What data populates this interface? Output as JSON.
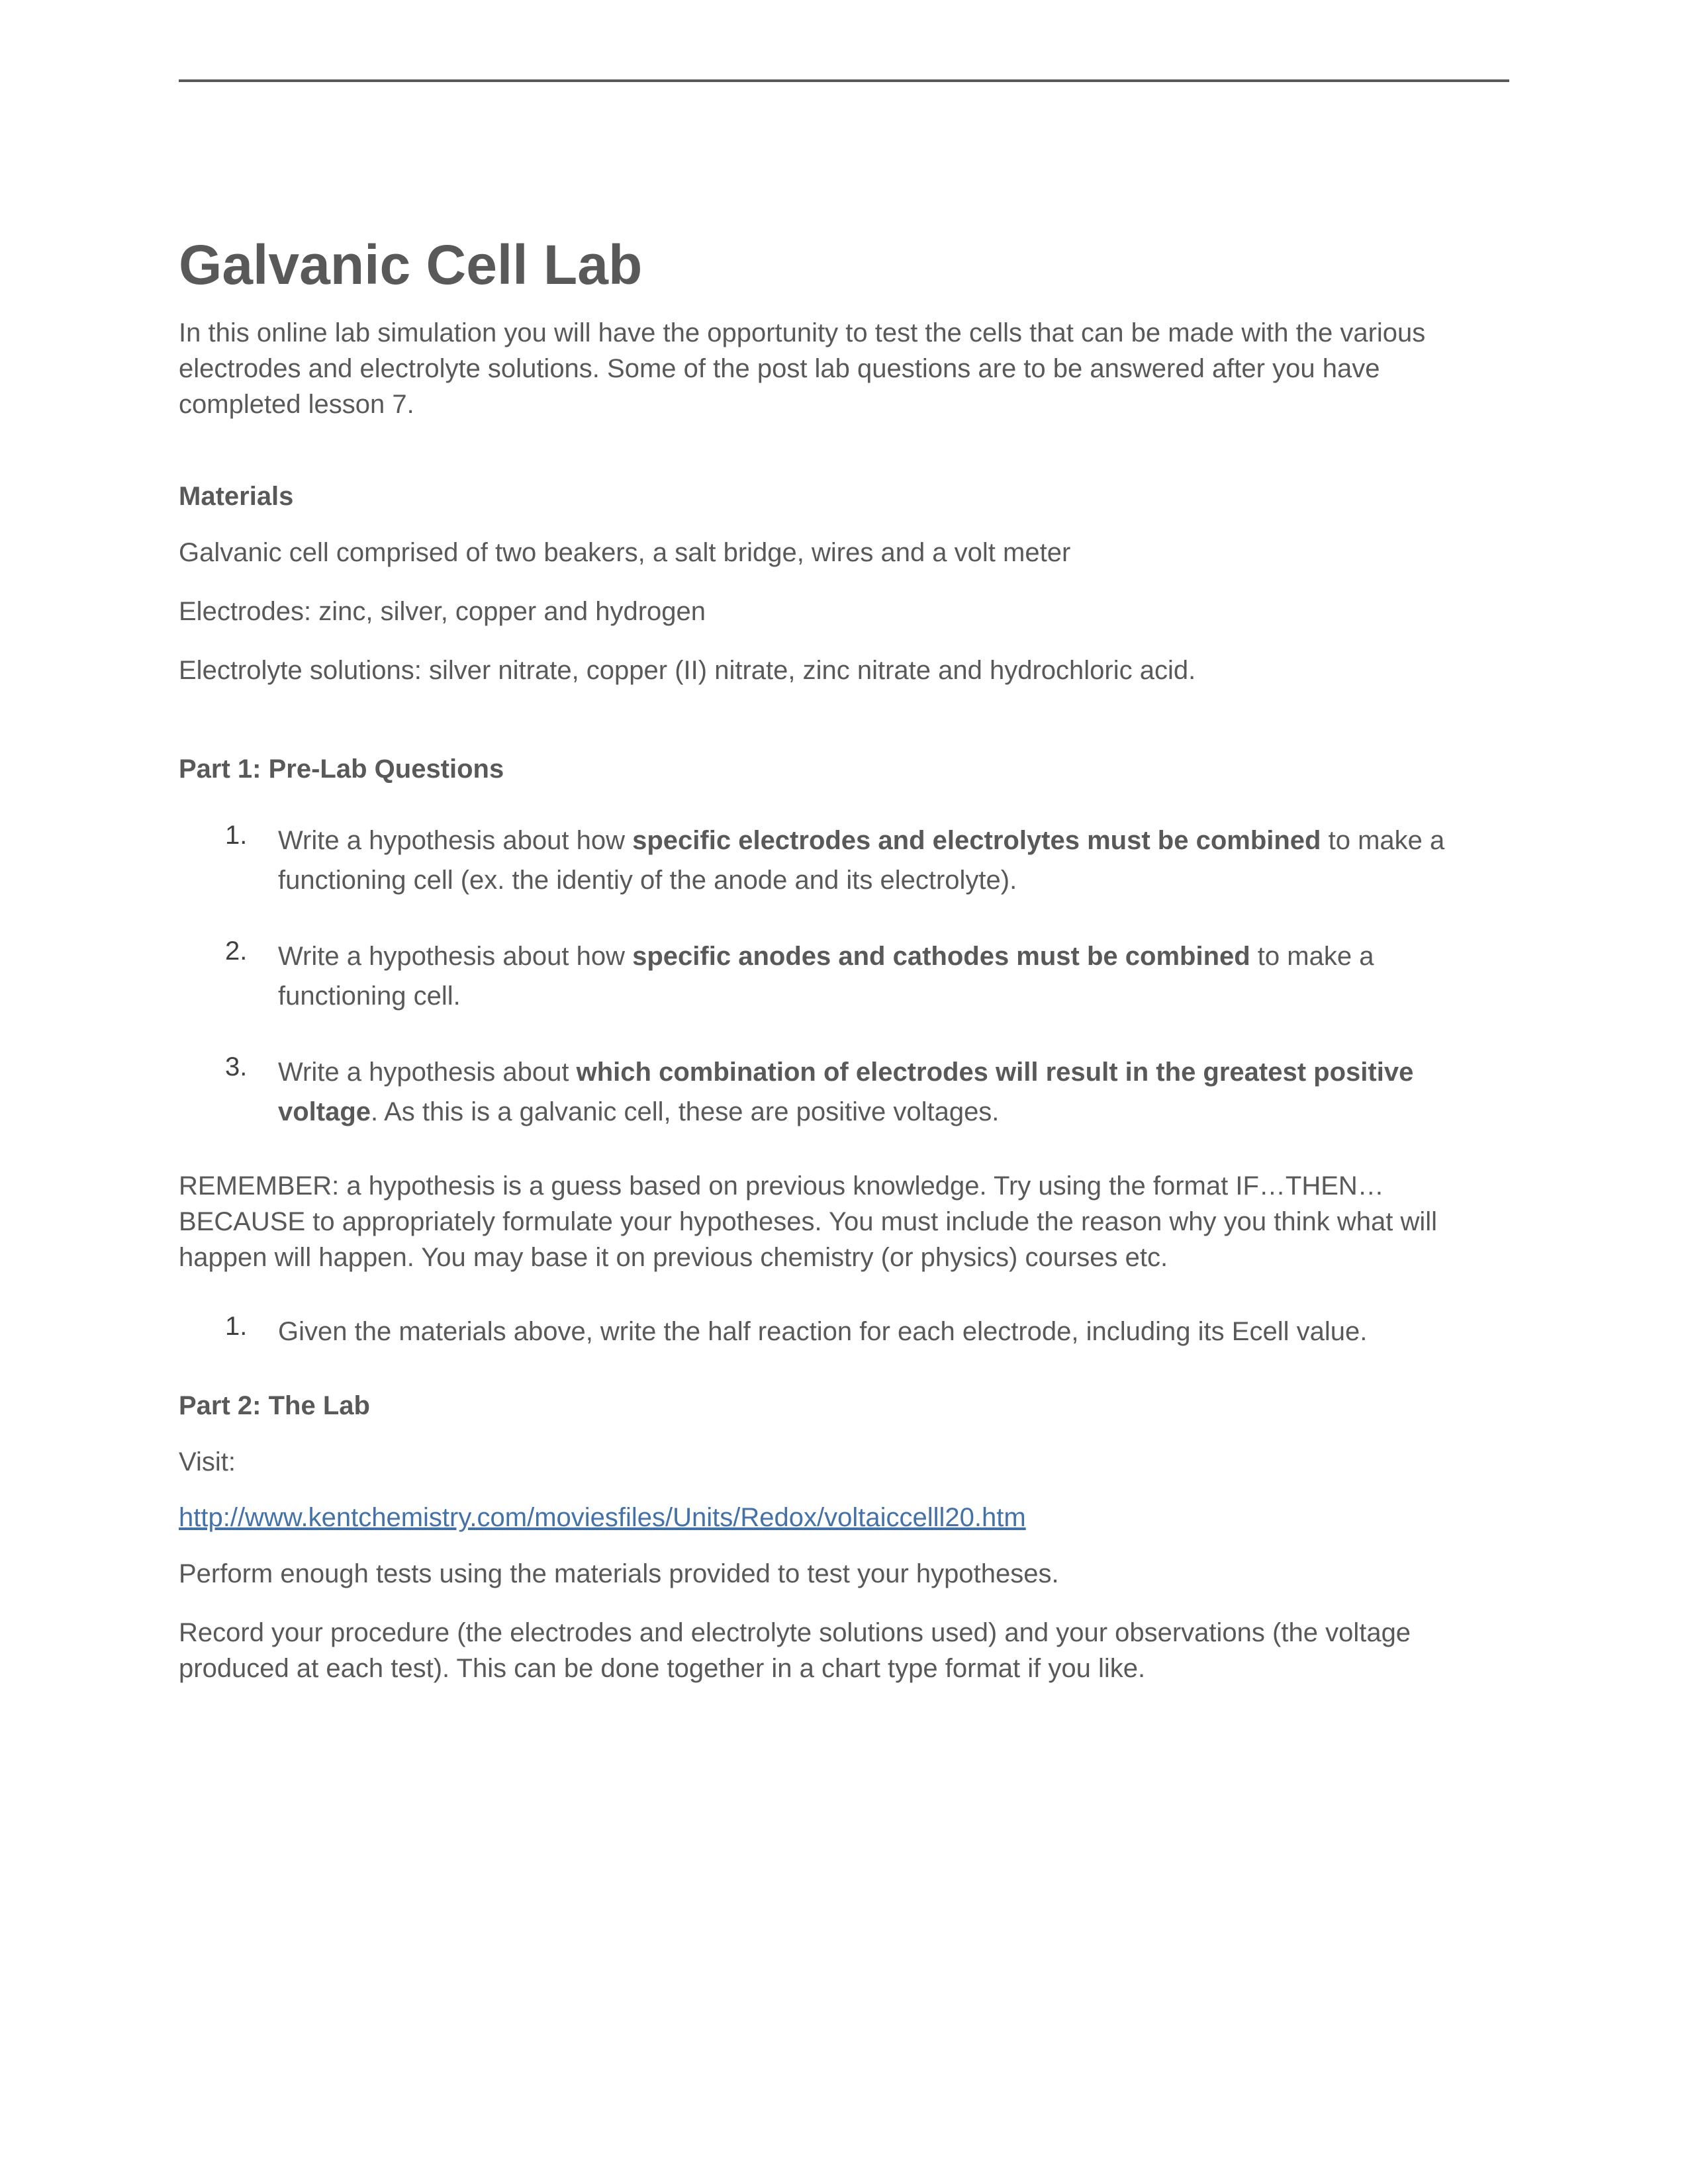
{
  "title": "Galvanic Cell Lab",
  "intro": "In this online lab simulation you will have the opportunity to test the cells that can be made with the various electrodes and electrolyte solutions. Some of the post lab questions are to be answered after you have completed lesson 7.",
  "materials": {
    "heading": "Materials",
    "line1": "Galvanic cell comprised of two beakers, a salt bridge, wires and a volt meter",
    "line2": "Electrodes: zinc, silver, copper and hydrogen",
    "line3": "Electrolyte solutions: silver nitrate, copper (II) nitrate, zinc nitrate and hydrochloric acid."
  },
  "part1": {
    "heading": "Part 1: Pre-Lab Questions",
    "q1_pre": "Write a hypothesis about how ",
    "q1_bold": "specific electrodes and electrolytes must be combined",
    "q1_post": " to make a functioning cell (ex. the identiy of the anode and its electrolyte).",
    "q2_pre": "Write a hypothesis about how ",
    "q2_bold": "specific anodes and cathodes must be combined",
    "q2_post": " to make a functioning cell.",
    "q3_pre": "Write a hypothesis about ",
    "q3_bold": "which combination of electrodes will result in the greatest positive voltage",
    "q3_post": ".  As this is a galvanic cell, these are positive voltages.",
    "remember": "REMEMBER: a hypothesis is a guess based on previous knowledge.  Try using the format IF…THEN…BECAUSE to appropriately formulate your hypotheses.  You must include the reason why you think what will happen will happen.  You may base it on previous chemistry (or physics) courses etc.",
    "q4": "Given the materials above, write the half reaction for each electrode, including its Ecell value."
  },
  "part2": {
    "heading": "Part 2: The Lab",
    "visit": "Visit:",
    "link": "http://www.kentchemistry.com/moviesfiles/Units/Redox/voltaiccelll20.htm",
    "instruction1": "Perform enough tests using the materials provided to test your hypotheses.",
    "instruction2": "Record your procedure (the electrodes and electrolyte solutions used) and your observations (the voltage produced at each test).  This can be done together in a chart type format if you like."
  },
  "numbers": {
    "n1": "1.",
    "n2": "2.",
    "n3": "3."
  }
}
